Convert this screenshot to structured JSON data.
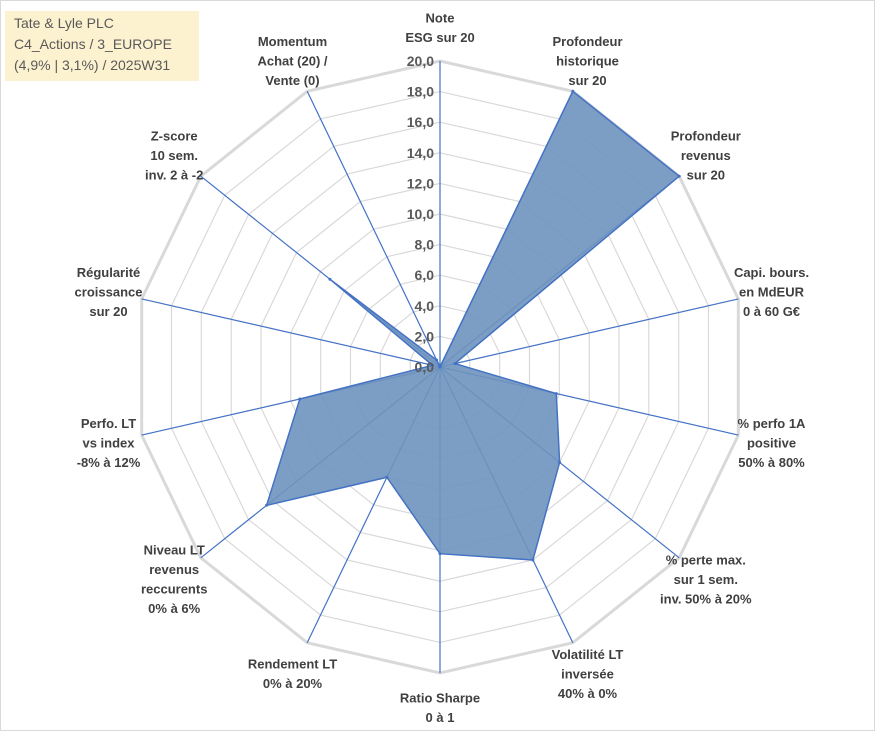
{
  "info_box": {
    "line1": "Tate & Lyle PLC",
    "line2": "C4_Actions / 3_EUROPE",
    "line3": "(4,9% | 3,1%) / 2025W31"
  },
  "chart_data": {
    "type": "radar",
    "rlim": [
      0,
      20
    ],
    "tick_step": 2,
    "tick_labels": [
      "0,0",
      "2,0",
      "4,0",
      "6,0",
      "8,0",
      "10,0",
      "12,0",
      "14,0",
      "16,0",
      "18,0",
      "20,0"
    ],
    "grid": true,
    "legend": "none",
    "fill_color": "#6f94be",
    "line_color": "#4472c4",
    "grid_color": "#d9d9d9",
    "axes": [
      {
        "lines": [
          "Note",
          "ESG sur 20"
        ],
        "value": 0
      },
      {
        "lines": [
          "Profondeur",
          "historique",
          "sur 20"
        ],
        "value": 20
      },
      {
        "lines": [
          "Profondeur",
          "revenus",
          "sur 20"
        ],
        "value": 20
      },
      {
        "lines": [
          "Capi. bours.",
          "en MdEUR",
          "0 à 60 G€"
        ],
        "value": 1.0
      },
      {
        "lines": [
          "% perfo 1A",
          "positive",
          "50% à 80%"
        ],
        "value": 7.8
      },
      {
        "lines": [
          "% perte max.",
          "sur 1 sem.",
          "inv. 50% à 20%"
        ],
        "value": 10.0
      },
      {
        "lines": [
          "Volatilité LT",
          "inversée",
          "40% à 0%"
        ],
        "value": 14.0
      },
      {
        "lines": [
          "Ratio Sharpe",
          "0 à 1"
        ],
        "value": 12.2
      },
      {
        "lines": [
          "Rendement LT",
          "0% à 20%"
        ],
        "value": 8.0
      },
      {
        "lines": [
          "Niveau LT",
          "revenus",
          "reccurents",
          "0% à 6%"
        ],
        "value": 14.5
      },
      {
        "lines": [
          "Perfo. LT",
          "vs index",
          "-8% à 12%"
        ],
        "value": 9.4
      },
      {
        "lines": [
          "Régularité",
          "croissance",
          "sur 20"
        ],
        "value": 0.5
      },
      {
        "lines": [
          "Z-score",
          "10 sem.",
          "inv. 2 à -2"
        ],
        "value": 9.2
      },
      {
        "lines": [
          "Momentum",
          "Achat (20) /",
          "Vente (0)"
        ],
        "value": 0.5
      }
    ]
  }
}
